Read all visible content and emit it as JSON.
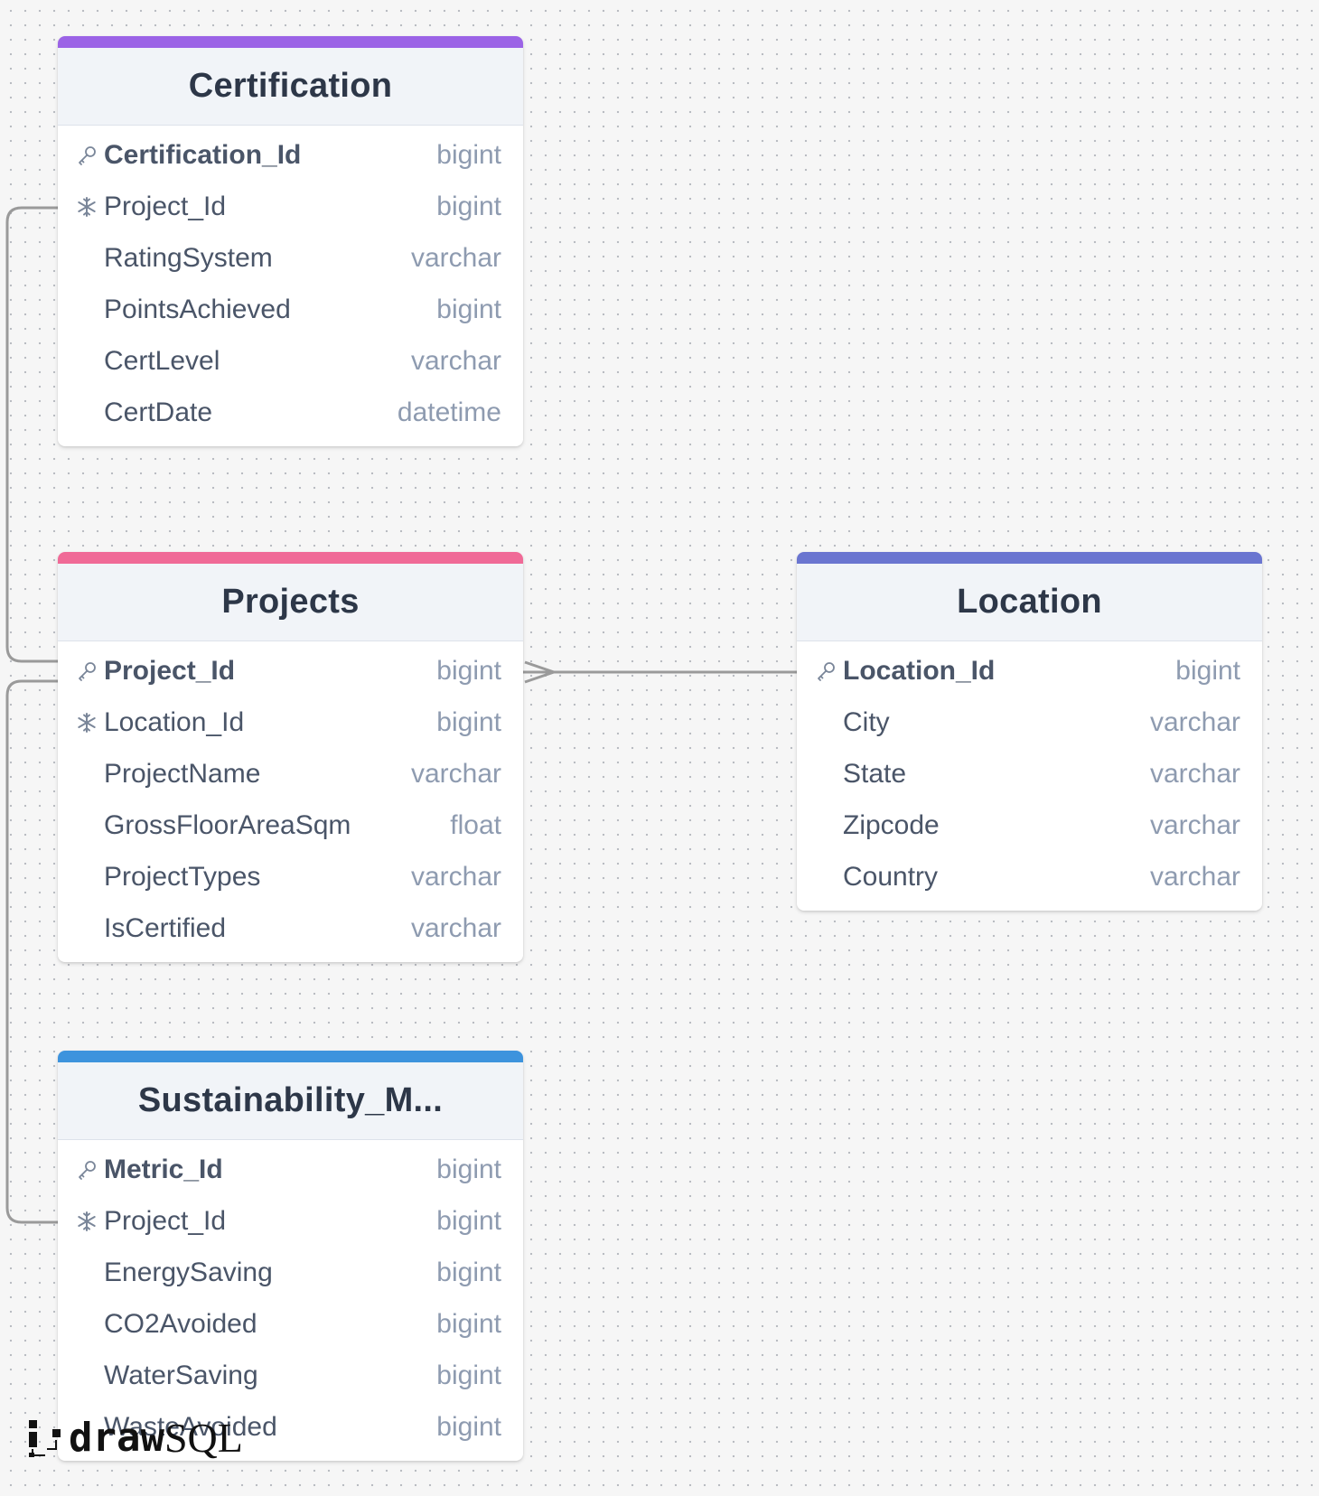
{
  "colors": {
    "certification_accent": "#9b63e6",
    "projects_accent": "#f06a97",
    "location_accent": "#6a75d0",
    "sustainability_accent": "#3d93dd",
    "connector": "#9a9a9a"
  },
  "tables": {
    "certification": {
      "title": "Certification",
      "columns": [
        {
          "name": "Certification_Id",
          "type": "bigint",
          "key": "primary",
          "icon": "key-icon"
        },
        {
          "name": "Project_Id",
          "type": "bigint",
          "key": "foreign",
          "icon": "snowflake-icon"
        },
        {
          "name": "RatingSystem",
          "type": "varchar",
          "key": "",
          "icon": ""
        },
        {
          "name": "PointsAchieved",
          "type": "bigint",
          "key": "",
          "icon": ""
        },
        {
          "name": "CertLevel",
          "type": "varchar",
          "key": "",
          "icon": ""
        },
        {
          "name": "CertDate",
          "type": "datetime",
          "key": "",
          "icon": ""
        }
      ]
    },
    "projects": {
      "title": "Projects",
      "columns": [
        {
          "name": "Project_Id",
          "type": "bigint",
          "key": "primary",
          "icon": "key-icon"
        },
        {
          "name": "Location_Id",
          "type": "bigint",
          "key": "foreign",
          "icon": "snowflake-icon"
        },
        {
          "name": "ProjectName",
          "type": "varchar",
          "key": "",
          "icon": ""
        },
        {
          "name": "GrossFloorAreaSqm",
          "type": "float",
          "key": "",
          "icon": ""
        },
        {
          "name": "ProjectTypes",
          "type": "varchar",
          "key": "",
          "icon": ""
        },
        {
          "name": "IsCertified",
          "type": "varchar",
          "key": "",
          "icon": ""
        }
      ]
    },
    "location": {
      "title": "Location",
      "columns": [
        {
          "name": "Location_Id",
          "type": "bigint",
          "key": "primary",
          "icon": "key-icon"
        },
        {
          "name": "City",
          "type": "varchar",
          "key": "",
          "icon": ""
        },
        {
          "name": "State",
          "type": "varchar",
          "key": "",
          "icon": ""
        },
        {
          "name": "Zipcode",
          "type": "varchar",
          "key": "",
          "icon": ""
        },
        {
          "name": "Country",
          "type": "varchar",
          "key": "",
          "icon": ""
        }
      ]
    },
    "sustainability": {
      "title": "Sustainability_M...",
      "columns": [
        {
          "name": "Metric_Id",
          "type": "bigint",
          "key": "primary",
          "icon": "key-icon"
        },
        {
          "name": "Project_Id",
          "type": "bigint",
          "key": "foreign",
          "icon": "snowflake-icon"
        },
        {
          "name": "EnergySaving",
          "type": "bigint",
          "key": "",
          "icon": ""
        },
        {
          "name": "CO2Avoided",
          "type": "bigint",
          "key": "",
          "icon": ""
        },
        {
          "name": "WaterSaving",
          "type": "bigint",
          "key": "",
          "icon": ""
        },
        {
          "name": "WasteAvoided",
          "type": "bigint",
          "key": "",
          "icon": ""
        }
      ]
    }
  },
  "logo": {
    "draw": "draw",
    "sql": "SQL"
  }
}
